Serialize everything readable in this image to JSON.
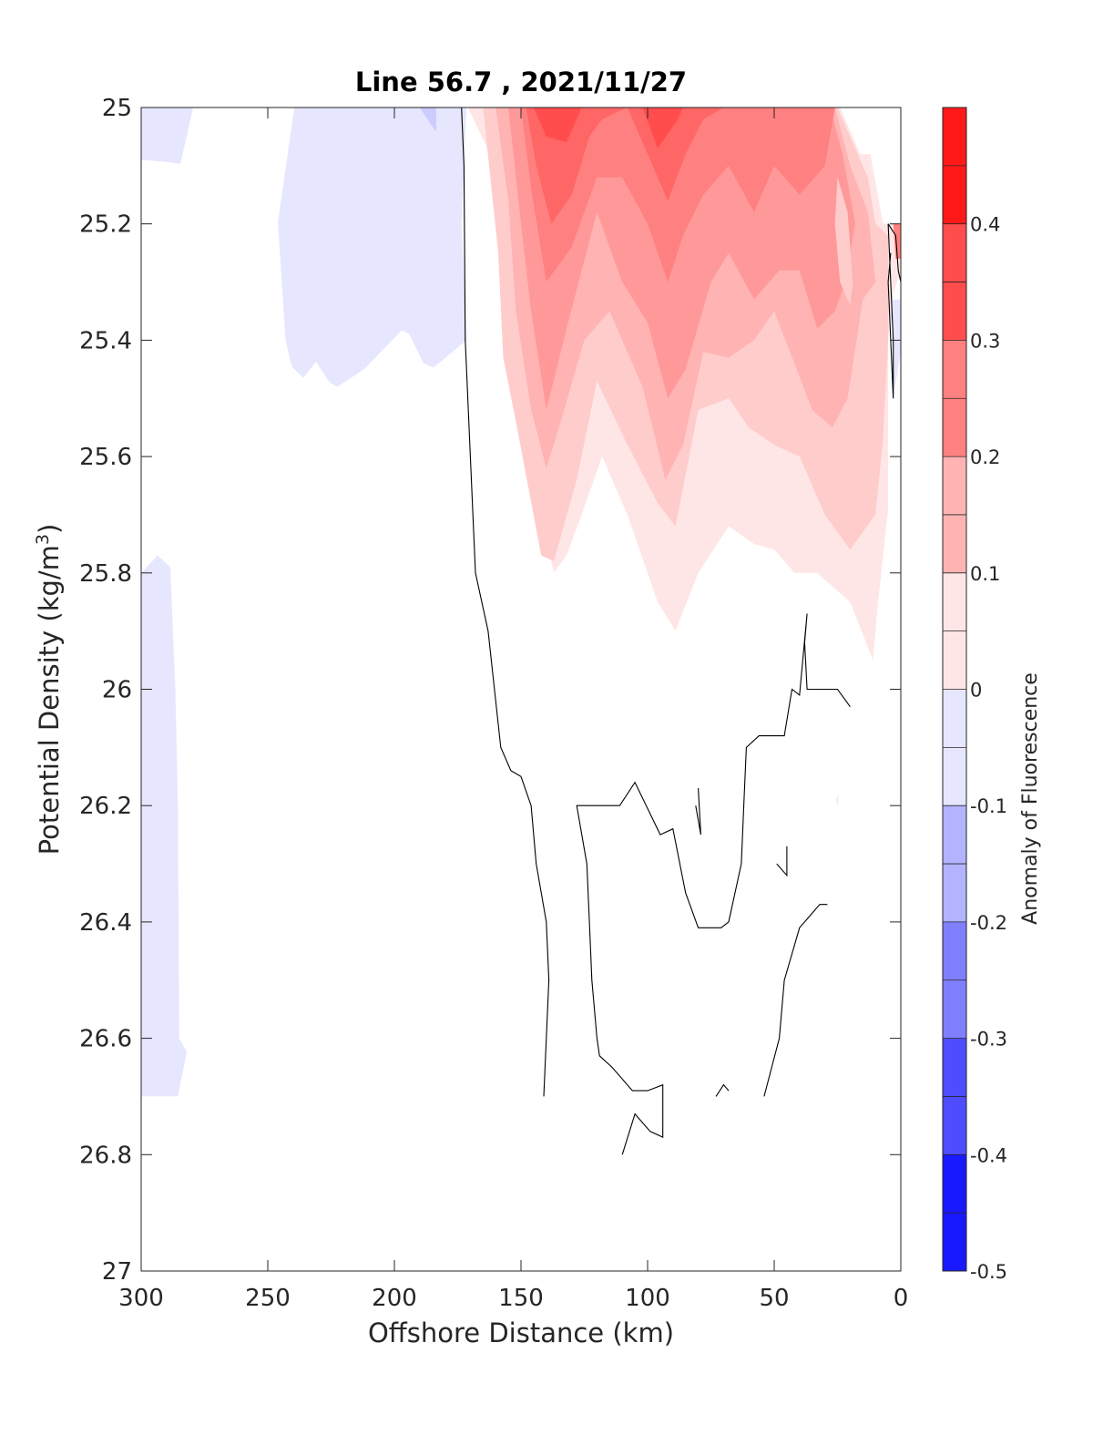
{
  "chart_data": {
    "type": "contour",
    "title": "Line 56.7 , 2021/11/27",
    "xlabel": "Offshore Distance (km)",
    "ylabel": "Potential Density (kg/m³)",
    "ylabel_parts": {
      "main": "Potential Density (kg/m",
      "sup": "3",
      "close": ")"
    },
    "xlim": [
      300,
      0
    ],
    "ylim": [
      25,
      27
    ],
    "x_reversed": true,
    "y_reversed": true,
    "xticks": [
      300,
      250,
      200,
      150,
      100,
      50,
      0
    ],
    "yticks": [
      25,
      25.2,
      25.4,
      25.6,
      25.8,
      26,
      26.2,
      26.4,
      26.6,
      26.8,
      27
    ],
    "colorbar": {
      "label": "Anomaly of Fluorescence",
      "range": [
        -0.5,
        0.5
      ],
      "ticks": [
        -0.5,
        -0.4,
        -0.3,
        -0.2,
        -0.1,
        0,
        0.1,
        0.2,
        0.3,
        0.4
      ],
      "level_step": 0.05,
      "negative_color": "#0000ff",
      "positive_color": "#ff0000"
    },
    "filled_regions": [
      {
        "level": -0.05,
        "points": [
          [
            300,
            25
          ],
          [
            279.5,
            25
          ],
          [
            284.5,
            25.097
          ],
          [
            290.5,
            25.093
          ],
          [
            300,
            25.09
          ]
        ]
      },
      {
        "level": -0.05,
        "points": [
          [
            239.5,
            25
          ],
          [
            171.5,
            25
          ],
          [
            173.5,
            25.2
          ],
          [
            171.5,
            25.4
          ],
          [
            184.5,
            25.447
          ],
          [
            188.5,
            25.44
          ],
          [
            194,
            25.39
          ],
          [
            197,
            25.383
          ],
          [
            212,
            25.45
          ],
          [
            222.5,
            25.48
          ],
          [
            225.5,
            25.473
          ],
          [
            231,
            25.437
          ],
          [
            236,
            25.465
          ],
          [
            240.5,
            25.445
          ],
          [
            243,
            25.4
          ],
          [
            246,
            25.197
          ]
        ]
      },
      {
        "level": -0.1,
        "points": [
          [
            190,
            25
          ],
          [
            183.5,
            25
          ],
          [
            183.5,
            25.042
          ],
          [
            187,
            25.02
          ]
        ]
      },
      {
        "level": -0.05,
        "points": [
          [
            300,
            25.8
          ],
          [
            293.5,
            25.77
          ],
          [
            288.5,
            25.79
          ],
          [
            286.5,
            26.0
          ],
          [
            285.5,
            26.2
          ],
          [
            285,
            26.6
          ],
          [
            282,
            26.623
          ],
          [
            285.5,
            26.7
          ],
          [
            300,
            26.7
          ]
        ]
      },
      {
        "level": -0.05,
        "points": [
          [
            5,
            25.33
          ],
          [
            3,
            25.39
          ],
          [
            3,
            25.5
          ],
          [
            0,
            25.42
          ],
          [
            0,
            25.33
          ]
        ]
      },
      {
        "level": -0.05,
        "points": [
          [
            25,
            26.2
          ],
          [
            24.5,
            26.18
          ],
          [
            25.5,
            26.19
          ]
        ]
      },
      {
        "level": 0.05,
        "points": [
          [
            171,
            25
          ],
          [
            160,
            25.1
          ],
          [
            155,
            25.3
          ],
          [
            154,
            25.4
          ],
          [
            148,
            25.6
          ],
          [
            137,
            25.8
          ],
          [
            132,
            25.77
          ],
          [
            126,
            25.7
          ],
          [
            118,
            25.6
          ],
          [
            108,
            25.7
          ],
          [
            96,
            25.85
          ],
          [
            89,
            25.9
          ],
          [
            80,
            25.8
          ],
          [
            68,
            25.72
          ],
          [
            58,
            25.75
          ],
          [
            50,
            25.76
          ],
          [
            42,
            25.8
          ],
          [
            33,
            25.8
          ],
          [
            20,
            25.85
          ],
          [
            11,
            25.95
          ],
          [
            9,
            25.85
          ],
          [
            5,
            25.69
          ],
          [
            5,
            25.4
          ],
          [
            3,
            25.32
          ],
          [
            0,
            25.28
          ],
          [
            0,
            25.2
          ],
          [
            7,
            25.2
          ],
          [
            12,
            25.08
          ],
          [
            16,
            25.08
          ],
          [
            24,
            25.0
          ]
        ]
      },
      {
        "level": 0.1,
        "points": [
          [
            165,
            25
          ],
          [
            159,
            25.25
          ],
          [
            157,
            25.43
          ],
          [
            152,
            25.54
          ],
          [
            142,
            25.77
          ],
          [
            137,
            25.78
          ],
          [
            128,
            25.64
          ],
          [
            120,
            25.47
          ],
          [
            108,
            25.58
          ],
          [
            96,
            25.68
          ],
          [
            89,
            25.72
          ],
          [
            80,
            25.52
          ],
          [
            68,
            25.5
          ],
          [
            60,
            25.55
          ],
          [
            50,
            25.58
          ],
          [
            40,
            25.6
          ],
          [
            30,
            25.7
          ],
          [
            20,
            25.76
          ],
          [
            10,
            25.7
          ],
          [
            7,
            25.57
          ],
          [
            5,
            25.4
          ],
          [
            5,
            25.22
          ],
          [
            10,
            25.2
          ],
          [
            13,
            25.12
          ],
          [
            19,
            25.06
          ],
          [
            25,
            25.0
          ]
        ]
      },
      {
        "level": 0.15,
        "points": [
          [
            160,
            25
          ],
          [
            155,
            25.16
          ],
          [
            152,
            25.35
          ],
          [
            146,
            25.52
          ],
          [
            140,
            25.62
          ],
          [
            135,
            25.55
          ],
          [
            125,
            25.4
          ],
          [
            115,
            25.35
          ],
          [
            102,
            25.48
          ],
          [
            93,
            25.64
          ],
          [
            86,
            25.58
          ],
          [
            78,
            25.42
          ],
          [
            68,
            25.43
          ],
          [
            58,
            25.4
          ],
          [
            50,
            25.35
          ],
          [
            42,
            25.44
          ],
          [
            35,
            25.52
          ],
          [
            27,
            25.55
          ],
          [
            21,
            25.5
          ],
          [
            15,
            25.33
          ],
          [
            10,
            25.3
          ],
          [
            13,
            25.18
          ],
          [
            20,
            25.1
          ],
          [
            26,
            25.0
          ]
        ]
      },
      {
        "level": 0.2,
        "points": [
          [
            155,
            25
          ],
          [
            150,
            25.2
          ],
          [
            146,
            25.35
          ],
          [
            140,
            25.52
          ],
          [
            132,
            25.38
          ],
          [
            120,
            25.18
          ],
          [
            110,
            25.3
          ],
          [
            100,
            25.37
          ],
          [
            92,
            25.5
          ],
          [
            85,
            25.45
          ],
          [
            75,
            25.3
          ],
          [
            68,
            25.25
          ],
          [
            58,
            25.33
          ],
          [
            48,
            25.28
          ],
          [
            40,
            25.28
          ],
          [
            33,
            25.38
          ],
          [
            26,
            25.35
          ],
          [
            22,
            25.3
          ],
          [
            18,
            25.2
          ],
          [
            23,
            25.08
          ],
          [
            28,
            25.0
          ]
        ]
      },
      {
        "level": 0.25,
        "points": [
          [
            150,
            25
          ],
          [
            146,
            25.14
          ],
          [
            140,
            25.3
          ],
          [
            130,
            25.24
          ],
          [
            120,
            25.12
          ],
          [
            110,
            25.12
          ],
          [
            100,
            25.2
          ],
          [
            92,
            25.3
          ],
          [
            86,
            25.22
          ],
          [
            78,
            25.15
          ],
          [
            68,
            25.1
          ],
          [
            58,
            25.18
          ],
          [
            50,
            25.1
          ],
          [
            40,
            25.15
          ],
          [
            30,
            25.1
          ],
          [
            26,
            25.0
          ]
        ]
      },
      {
        "level": 0.3,
        "points": [
          [
            148,
            25
          ],
          [
            144,
            25.1
          ],
          [
            138,
            25.2
          ],
          [
            130,
            25.15
          ],
          [
            123,
            25.05
          ],
          [
            118,
            25.02
          ],
          [
            108,
            25.0
          ],
          [
            104,
            25.04
          ],
          [
            98,
            25.1
          ],
          [
            92,
            25.16
          ],
          [
            85,
            25.08
          ],
          [
            78,
            25.02
          ],
          [
            70,
            25.0
          ]
        ]
      },
      {
        "level": 0.35,
        "points": [
          [
            145,
            25
          ],
          [
            140,
            25.05
          ],
          [
            132,
            25.06
          ],
          [
            126,
            25.0
          ]
        ]
      },
      {
        "level": 0.35,
        "points": [
          [
            102,
            25
          ],
          [
            96,
            25.07
          ],
          [
            88,
            25.02
          ],
          [
            86,
            25.0
          ]
        ]
      },
      {
        "level": 0.25,
        "points": [
          [
            0,
            25.2
          ],
          [
            3,
            25.2
          ],
          [
            2,
            25.26
          ],
          [
            0,
            25.26
          ]
        ]
      },
      {
        "level": 0.1,
        "points": [
          [
            25,
            25.12
          ],
          [
            21,
            25.18
          ],
          [
            19,
            25.3
          ],
          [
            20,
            25.34
          ],
          [
            24,
            25.3
          ],
          [
            26,
            25.2
          ]
        ]
      }
    ],
    "contour_lines": [
      {
        "level": 0,
        "points": [
          [
            173.5,
            25
          ],
          [
            172.5,
            25.1
          ],
          [
            172,
            25.4
          ],
          [
            170,
            25.6
          ],
          [
            168,
            25.8
          ],
          [
            163,
            25.9
          ],
          [
            158,
            26.1
          ],
          [
            154,
            26.14
          ],
          [
            150,
            26.15
          ],
          [
            146,
            26.2
          ],
          [
            144,
            26.3
          ],
          [
            140,
            26.4
          ],
          [
            139,
            26.5
          ],
          [
            140,
            26.6
          ],
          [
            141,
            26.7
          ]
        ]
      },
      {
        "level": 0,
        "points": [
          [
            5,
            25.2
          ],
          [
            4,
            25.3
          ],
          [
            3,
            25.4
          ],
          [
            3,
            25.5
          ],
          [
            5,
            25.3
          ],
          [
            4,
            25.25
          ]
        ]
      },
      {
        "level": 0,
        "points": [
          [
            0,
            25.3
          ],
          [
            1,
            25.28
          ],
          [
            2,
            25.22
          ],
          [
            5,
            25.2
          ]
        ]
      },
      {
        "level": 0,
        "points": [
          [
            110,
            26.8
          ],
          [
            105,
            26.73
          ],
          [
            99,
            26.76
          ],
          [
            94,
            26.77
          ],
          [
            94,
            26.68
          ],
          [
            100,
            26.69
          ],
          [
            106,
            26.69
          ],
          [
            114,
            26.65
          ],
          [
            119,
            26.63
          ],
          [
            120,
            26.6
          ],
          [
            122,
            26.5
          ],
          [
            123,
            26.4
          ],
          [
            124,
            26.3
          ],
          [
            128,
            26.2
          ],
          [
            111,
            26.2
          ],
          [
            105,
            26.16
          ],
          [
            95,
            26.25
          ],
          [
            90,
            26.24
          ],
          [
            85,
            26.35
          ],
          [
            80,
            26.41
          ],
          [
            71,
            26.41
          ],
          [
            68,
            26.4
          ],
          [
            63,
            26.3
          ],
          [
            62,
            26.2
          ],
          [
            61,
            26.1
          ],
          [
            56,
            26.08
          ],
          [
            51,
            26.08
          ],
          [
            46,
            26.08
          ],
          [
            43,
            26.0
          ],
          [
            40,
            26.01
          ],
          [
            37,
            25.87
          ],
          [
            38,
            25.92
          ],
          [
            37,
            26.0
          ],
          [
            33,
            26.0
          ],
          [
            25,
            26.0
          ],
          [
            20,
            26.03
          ]
        ]
      },
      {
        "level": 0,
        "points": [
          [
            80,
            26.17
          ],
          [
            79,
            26.25
          ],
          [
            81,
            26.2
          ]
        ]
      },
      {
        "level": 0,
        "points": [
          [
            49,
            26.3
          ],
          [
            45,
            26.32
          ],
          [
            45,
            26.27
          ]
        ]
      },
      {
        "level": 0,
        "points": [
          [
            29,
            26.37
          ],
          [
            32,
            26.37
          ],
          [
            40,
            26.41
          ],
          [
            44,
            26.47
          ],
          [
            46,
            26.5
          ],
          [
            48,
            26.6
          ],
          [
            54,
            26.7
          ]
        ]
      },
      {
        "level": 0,
        "points": [
          [
            68,
            26.69
          ],
          [
            70,
            26.68
          ],
          [
            73,
            26.7
          ]
        ]
      }
    ]
  }
}
